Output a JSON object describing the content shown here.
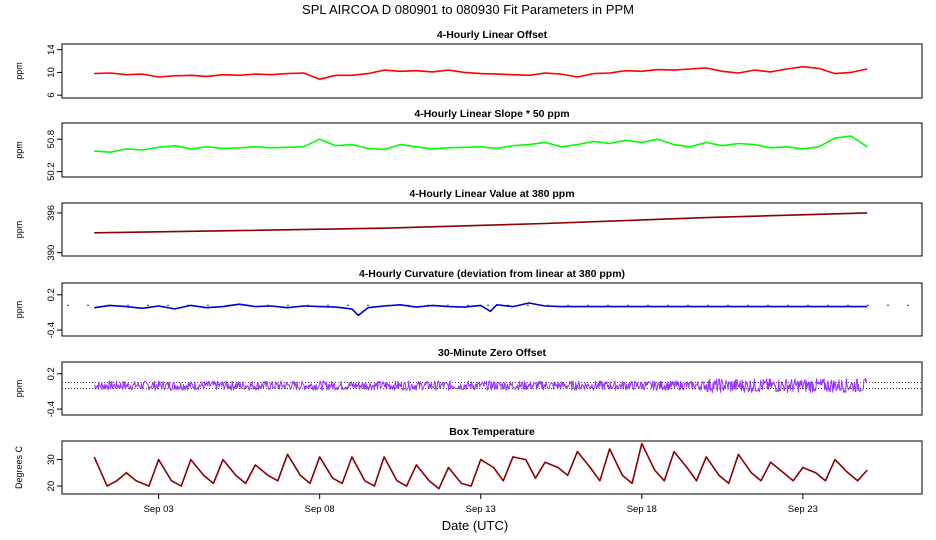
{
  "figure": {
    "title": "SPL   AIRCOA D   080901 to 080930   Fit Parameters in PPM",
    "xlabel": "Date (UTC)"
  },
  "chart_data": [
    {
      "type": "line",
      "title": "4-Hourly Linear Offset",
      "ylabel": "ppm",
      "ylim": [
        5.5,
        15
      ],
      "yticks": [
        6,
        10,
        14
      ],
      "color": "#ff0000",
      "series": [
        {
          "x": [
            1.0,
            1.5,
            2.0,
            2.5,
            3.0,
            3.5,
            4.0,
            4.5,
            5.0,
            5.5,
            6.0,
            6.5,
            7.0,
            7.5,
            8.0,
            8.5,
            9.0,
            9.5,
            10.0,
            10.5,
            11.0,
            11.5,
            12.0,
            12.5,
            13.0,
            13.5,
            14.0,
            14.5,
            15.0,
            15.5,
            16.0,
            16.5,
            17.0,
            17.5,
            18.0,
            18.5,
            19.0,
            19.5,
            20.0,
            20.5,
            21.0,
            21.5,
            22.0,
            22.5,
            23.0,
            23.5,
            24.0,
            24.5,
            25.0
          ],
          "y": [
            9.8,
            9.9,
            9.6,
            9.7,
            9.2,
            9.4,
            9.5,
            9.3,
            9.6,
            9.5,
            9.7,
            9.6,
            9.8,
            9.9,
            8.8,
            9.5,
            9.5,
            9.8,
            10.4,
            10.2,
            10.3,
            10.1,
            10.4,
            10.0,
            9.8,
            9.7,
            9.6,
            9.5,
            9.9,
            9.7,
            9.2,
            9.8,
            9.9,
            10.3,
            10.2,
            10.5,
            10.4,
            10.6,
            10.8,
            10.2,
            9.9,
            10.4,
            10.1,
            10.6,
            11.0,
            10.7,
            9.8,
            10.0,
            10.6
          ]
        }
      ]
    },
    {
      "type": "line",
      "title": "4-Hourly Linear Slope * 50 ppm",
      "ylabel": "ppm",
      "ylim": [
        50.1,
        51.1
      ],
      "yticks": [
        50.2,
        50.8
      ],
      "color": "#00ff00",
      "series": [
        {
          "x": [
            1.0,
            1.5,
            2.0,
            2.5,
            3.0,
            3.5,
            4.0,
            4.5,
            5.0,
            5.5,
            6.0,
            6.5,
            7.0,
            7.5,
            8.0,
            8.5,
            9.0,
            9.5,
            10.0,
            10.5,
            11.0,
            11.5,
            12.0,
            12.5,
            13.0,
            13.5,
            14.0,
            14.5,
            15.0,
            15.5,
            16.0,
            16.5,
            17.0,
            17.5,
            18.0,
            18.5,
            19.0,
            19.5,
            20.0,
            20.5,
            21.0,
            21.5,
            22.0,
            22.5,
            23.0,
            23.5,
            24.0,
            24.5,
            25.0
          ],
          "y": [
            50.58,
            50.56,
            50.62,
            50.6,
            50.65,
            50.68,
            50.62,
            50.66,
            50.63,
            50.64,
            50.66,
            50.64,
            50.65,
            50.66,
            50.8,
            50.68,
            50.7,
            50.63,
            50.61,
            50.7,
            50.66,
            50.62,
            50.64,
            50.65,
            50.66,
            50.63,
            50.68,
            50.7,
            50.74,
            50.66,
            50.7,
            50.76,
            50.72,
            50.78,
            50.74,
            50.8,
            50.7,
            50.66,
            50.74,
            50.68,
            50.72,
            50.7,
            50.64,
            50.66,
            50.62,
            50.66,
            50.82,
            50.86,
            50.66
          ]
        }
      ]
    },
    {
      "type": "line",
      "title": "4-Hourly Linear Value at 380 ppm",
      "ylabel": "ppm",
      "ylim": [
        389.5,
        397.5
      ],
      "yticks": [
        390,
        396
      ],
      "color": "#8b0000",
      "series": [
        {
          "x": [
            1,
            5,
            10,
            15,
            20,
            25
          ],
          "y": [
            393.0,
            393.3,
            393.7,
            394.4,
            395.3,
            396.0
          ]
        }
      ]
    },
    {
      "type": "line",
      "title": "4-Hourly Curvature (deviation from linear at 380 ppm)",
      "ylabel": "ppm",
      "ylim": [
        -0.5,
        0.4
      ],
      "yticks": [
        -0.4,
        0.2
      ],
      "color": "#0000cc",
      "series": [
        {
          "x": [
            1.0,
            1.5,
            2.0,
            2.5,
            3.0,
            3.5,
            4.0,
            4.5,
            5.0,
            5.5,
            6.0,
            6.5,
            7.0,
            7.5,
            8.0,
            8.5,
            9.0,
            9.2,
            9.5,
            10.0,
            10.5,
            11.0,
            11.5,
            12.0,
            12.5,
            13.0,
            13.3,
            13.5,
            14.0,
            14.5,
            15.0,
            15.5,
            16.0,
            25.0
          ],
          "y": [
            -0.02,
            0.02,
            0.0,
            -0.03,
            0.01,
            -0.04,
            0.02,
            -0.02,
            0.0,
            0.04,
            0.0,
            0.01,
            -0.02,
            0.01,
            0.0,
            -0.01,
            -0.04,
            -0.15,
            -0.02,
            0.01,
            0.03,
            -0.01,
            0.02,
            0.0,
            -0.01,
            0.02,
            -0.08,
            0.03,
            0.0,
            0.06,
            0.01,
            0.0,
            0.0,
            0.0
          ]
        }
      ]
    },
    {
      "type": "line",
      "title": "30-Minute Zero Offset",
      "ylabel": "ppm",
      "ylim": [
        -0.5,
        0.4
      ],
      "yticks": [
        -0.4,
        0.2
      ],
      "color": "#9933ff",
      "series": [
        {
          "x_start": 1,
          "x_end": 25,
          "y_mean": 0.0,
          "noise_amplitude": 0.08
        }
      ]
    },
    {
      "type": "line",
      "title": "Box Temperature",
      "ylabel": "Degrees C",
      "ylim": [
        17,
        37
      ],
      "yticks": [
        20,
        30
      ],
      "color": "#8b0000",
      "series": [
        {
          "x": [
            1.0,
            1.4,
            1.7,
            2.0,
            2.3,
            2.7,
            3.0,
            3.4,
            3.7,
            4.0,
            4.4,
            4.7,
            5.0,
            5.4,
            5.7,
            6.0,
            6.4,
            6.7,
            7.0,
            7.4,
            7.7,
            8.0,
            8.4,
            8.7,
            9.0,
            9.4,
            9.7,
            10.0,
            10.4,
            10.7,
            11.0,
            11.4,
            11.7,
            12.0,
            12.4,
            12.7,
            13.0,
            13.4,
            13.7,
            14.0,
            14.4,
            14.7,
            15.0,
            15.4,
            15.7,
            16.0,
            16.4,
            16.7,
            17.0,
            17.4,
            17.7,
            18.0,
            18.4,
            18.7,
            19.0,
            19.4,
            19.7,
            20.0,
            20.4,
            20.7,
            21.0,
            21.4,
            21.7,
            22.0,
            22.4,
            22.7,
            23.0,
            23.4,
            23.7,
            24.0,
            24.4,
            24.7,
            25.0
          ],
          "y": [
            31,
            20,
            22,
            25,
            22,
            20,
            30,
            22,
            20,
            30,
            24,
            21,
            30,
            24,
            21,
            28,
            24,
            22,
            32,
            24,
            21,
            31,
            23,
            21,
            31,
            22,
            20,
            31,
            22,
            20,
            28,
            22,
            19,
            27,
            21,
            20,
            30,
            27,
            22,
            31,
            30,
            23,
            29,
            27,
            24,
            33,
            27,
            22,
            34,
            24,
            21,
            36,
            26,
            22,
            33,
            27,
            22,
            31,
            24,
            21,
            32,
            25,
            22,
            29,
            25,
            22,
            27,
            25,
            22,
            30,
            25,
            22,
            26
          ]
        }
      ]
    }
  ],
  "x_axis": {
    "ticks": [
      {
        "x": 3,
        "label": "Sep 03"
      },
      {
        "x": 8,
        "label": "Sep 08"
      },
      {
        "x": 13,
        "label": "Sep 13"
      },
      {
        "x": 18,
        "label": "Sep 18"
      },
      {
        "x": 23,
        "label": "Sep 23"
      }
    ],
    "xlim": [
      0,
      26.7
    ]
  }
}
